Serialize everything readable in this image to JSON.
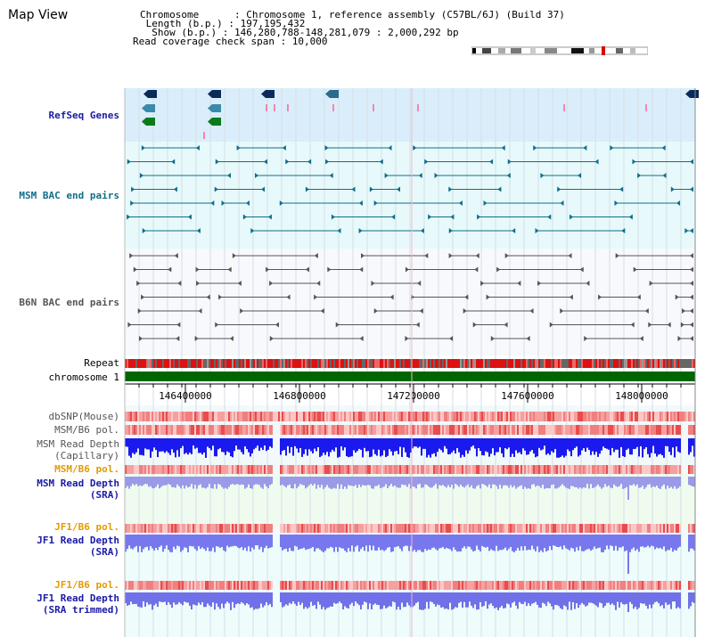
{
  "title": "Map View",
  "info": {
    "chromosome_line": "Chromosome      : Chromosome 1, reference assembly (C57BL/6J) (Build 37)",
    "length_line": " Length (b.p.) : 197,195,432",
    "show_line": "  Show (b.p.) : 146,280,788-148,281,079 : 2,000,292 bp",
    "coverage_line": "Read coverage check span : 10,000"
  },
  "tracks": {
    "refseq": "RefSeq Genes",
    "msm_bac": "MSM BAC end pairs",
    "b6n_bac": "B6N BAC end pairs",
    "repeat": "Repeat",
    "chromosome": "chromosome 1",
    "dbsnp": "dbSNP(Mouse)",
    "msm_b6_pol_1": "MSM/B6 pol.",
    "msm_read_depth_cap_1": "MSM Read Depth",
    "msm_read_depth_cap_2": "(Capillary)",
    "msm_b6_pol_2": "MSM/B6 pol.",
    "msm_read_depth_sra_1": "MSM Read Depth",
    "msm_read_depth_sra_2": "(SRA)",
    "jf1_b6_pol_1": "JF1/B6 pol.",
    "jf1_read_depth_sra_1": "JF1 Read Depth",
    "jf1_read_depth_sra_2": "(SRA)",
    "jf1_b6_pol_2": "JF1/B6 pol.",
    "jf1_read_depth_trim_1": "JF1 Read Depth",
    "jf1_read_depth_trim_2": "(SRA trimmed)"
  },
  "scale_ticks": [
    "146400000",
    "146800000",
    "147200000",
    "147600000",
    "148000000"
  ],
  "colors": {
    "label_blue": "#1a1aa6",
    "label_teal": "#0f6e8a",
    "label_gray": "#555555",
    "label_orange": "#e39a00",
    "chromosome_green": "#006600",
    "depth_blue": "#1a1aee",
    "depth_light": "#8f8fef",
    "refseq_bg": "#d9eefa",
    "msm_bg": "#e7f9fb",
    "b6n_bg": "#f7f9fc"
  }
}
